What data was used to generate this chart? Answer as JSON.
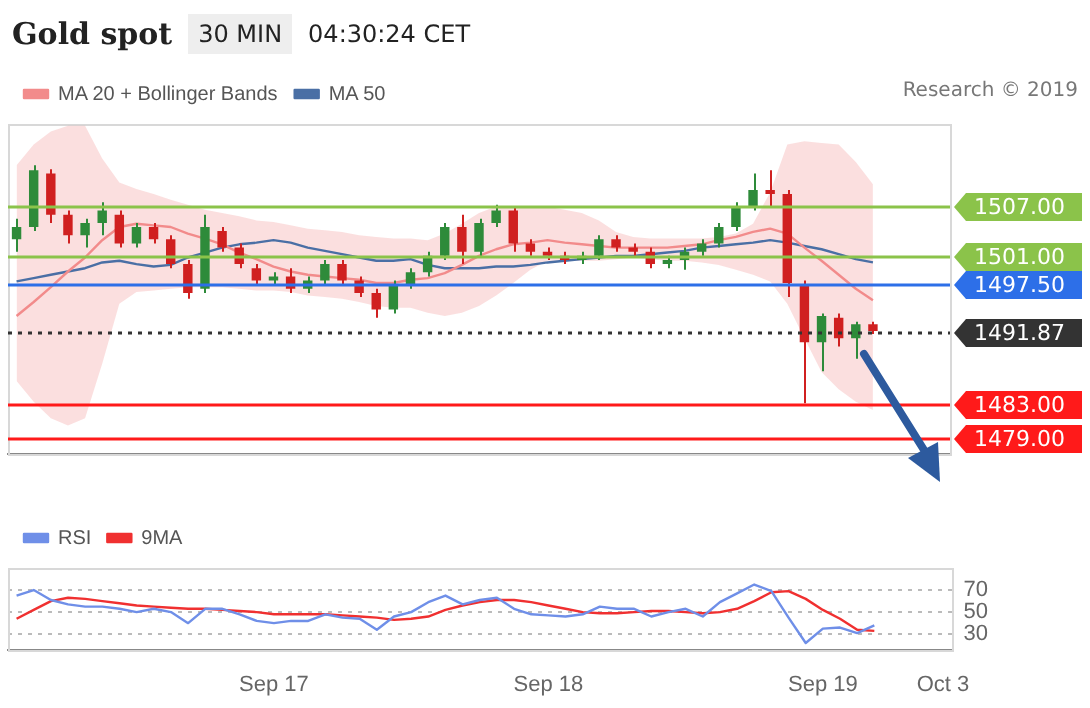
{
  "chart_data": [
    {
      "type": "candlestick",
      "title": "Gold spot",
      "annotations": [
        "30 MIN",
        "04:30:24 CET",
        "Research © 2019"
      ],
      "categories": [
        null,
        null,
        null,
        null,
        null,
        null,
        null,
        null,
        null,
        null,
        null,
        null,
        null,
        null,
        null,
        null,
        null,
        null,
        null,
        null,
        null,
        null,
        null,
        null,
        null,
        null,
        null,
        null,
        null,
        null,
        null,
        null,
        null,
        null,
        null,
        null,
        null,
        null,
        null,
        null,
        null,
        null,
        null,
        null,
        null,
        null,
        null,
        null,
        null,
        null,
        null,
        null,
        null,
        null,
        null
      ],
      "ylim": [
        1477,
        1517
      ],
      "legend": "top left",
      "ohlc": [
        [
          1503,
          1505.5,
          1501.5,
          1504.5
        ],
        [
          1504.5,
          1512,
          1504,
          1511.4
        ],
        [
          1511,
          1511.5,
          1505,
          1506
        ],
        [
          1506,
          1506.5,
          1502.5,
          1503.5
        ],
        [
          1503.5,
          1505.5,
          1502,
          1505
        ],
        [
          1505,
          1507.5,
          1503.5,
          1506.5
        ],
        [
          1506,
          1506.5,
          1502,
          1502.5
        ],
        [
          1502.5,
          1505,
          1502,
          1504.5
        ],
        [
          1504.5,
          1505,
          1502.5,
          1503
        ],
        [
          1503,
          1503.5,
          1499.5,
          1500
        ],
        [
          1500,
          1500.5,
          1495.8,
          1496.5
        ],
        [
          1497,
          1506,
          1496.5,
          1504.5
        ],
        [
          1504,
          1504.5,
          1501.5,
          1502
        ],
        [
          1502,
          1502.5,
          1499.5,
          1500
        ],
        [
          1499.5,
          1500,
          1497.5,
          1498
        ],
        [
          1498,
          1499,
          1497.5,
          1498.5
        ],
        [
          1498.5,
          1499.5,
          1496.5,
          1497
        ],
        [
          1497,
          1498.5,
          1496.5,
          1498
        ],
        [
          1498,
          1500.5,
          1497.5,
          1500
        ],
        [
          1500,
          1500.5,
          1497.5,
          1498
        ],
        [
          1498,
          1498.5,
          1496,
          1496.5
        ],
        [
          1496.5,
          1497,
          1493.5,
          1494.5
        ],
        [
          1494.5,
          1498,
          1494,
          1497.5
        ],
        [
          1497.5,
          1499.5,
          1497,
          1499
        ],
        [
          1499,
          1501.5,
          1498.5,
          1501
        ],
        [
          1501,
          1505,
          1500.5,
          1504.5
        ],
        [
          1504.5,
          1506,
          1500,
          1501.5
        ],
        [
          1501.5,
          1505.5,
          1501,
          1505
        ],
        [
          1505,
          1507.2,
          1504.5,
          1506.5
        ],
        [
          1506.5,
          1507,
          1501.5,
          1502.5
        ],
        [
          1502.5,
          1503,
          1501,
          1501.5
        ],
        [
          1501.5,
          1502,
          1500.5,
          1501
        ],
        [
          1501,
          1501.5,
          1500,
          1500.5
        ],
        [
          1500.5,
          1501.5,
          1500,
          1501
        ],
        [
          1501,
          1503.5,
          1500.5,
          1503
        ],
        [
          1503,
          1503.5,
          1501.5,
          1502
        ],
        [
          1502,
          1502.5,
          1501,
          1501.5
        ],
        [
          1501.5,
          1502,
          1499.5,
          1500
        ],
        [
          1500,
          1501,
          1499.5,
          1500.5
        ],
        [
          1500.5,
          1502,
          1499.3,
          1501.5
        ],
        [
          1501.5,
          1503,
          1501,
          1502.5
        ],
        [
          1502.5,
          1505,
          1502,
          1504.5
        ],
        [
          1504.5,
          1507.5,
          1504,
          1507
        ],
        [
          1507,
          1511,
          1506.5,
          1509
        ],
        [
          1509,
          1511.4,
          1507,
          1508.5
        ],
        [
          1508.5,
          1509,
          1496,
          1497.7
        ],
        [
          1497.5,
          1498,
          1483.1,
          1490.5
        ],
        [
          1490.5,
          1494,
          1487,
          1493.7
        ],
        [
          1493.5,
          1494,
          1490,
          1491
        ],
        [
          1491,
          1493,
          1488.5,
          1492.7
        ],
        [
          1492.7,
          1493,
          1491.5,
          1491.87
        ],
        null,
        null,
        null,
        null
      ],
      "series": [
        {
          "name": "MA 20 + Bollinger Bands",
          "type": "line",
          "color": "#f28b8b",
          "values": [
            1493.7,
            1495.4,
            1497.2,
            1499.1,
            1500.8,
            1502.9,
            1504.5,
            1504.9,
            1504.7,
            1504.5,
            1503.7,
            1503.1,
            1502.4,
            1501.4,
            1500.6,
            1499.7,
            1499.1,
            1498.7,
            1498.5,
            1498.3,
            1498.1,
            1497.7,
            1497.7,
            1498.1,
            1498.3,
            1498.9,
            1499.9,
            1501.0,
            1501.8,
            1502.4,
            1502.6,
            1502.9,
            1502.6,
            1502.4,
            1502.2,
            1502.0,
            1502.0,
            1502.0,
            1502.0,
            1502.2,
            1502.4,
            1502.9,
            1503.3,
            1503.9,
            1504.3,
            1503.7,
            1502.0,
            1500.4,
            1498.7,
            1497.0,
            1495.6,
            null,
            null,
            null,
            null
          ],
          "upper": [
            1512.0,
            1514.5,
            1516.1,
            1516.8,
            1516.8,
            1512.8,
            1509.9,
            1509.1,
            1508.5,
            1507.8,
            1507.2,
            1506.6,
            1506.2,
            1505.8,
            1505.3,
            1505.1,
            1504.7,
            1504.3,
            1504.1,
            1503.9,
            1503.5,
            1503.3,
            1503.1,
            1503.1,
            1502.9,
            1503.7,
            1504.9,
            1506.2,
            1507.0,
            1507.0,
            1507.0,
            1507.0,
            1506.6,
            1506.2,
            1505.3,
            1503.9,
            1503.3,
            1503.1,
            1503.1,
            1503.1,
            1503.1,
            1503.3,
            1503.7,
            1504.9,
            1508.7,
            1514.5,
            1514.9,
            1514.7,
            1514.5,
            1512.4,
            1509.7,
            null,
            null,
            null,
            null
          ],
          "lower": [
            1485.8,
            1483.3,
            1481.3,
            1480.4,
            1481.3,
            1487.9,
            1495.2,
            1496.6,
            1496.8,
            1497.0,
            1497.2,
            1497.2,
            1497.2,
            1497.0,
            1496.8,
            1496.8,
            1496.6,
            1496.2,
            1496.0,
            1495.8,
            1495.4,
            1494.9,
            1494.7,
            1494.7,
            1494.1,
            1493.7,
            1494.1,
            1494.9,
            1496.2,
            1497.7,
            1499.3,
            1500.4,
            1500.4,
            1500.4,
            1500.4,
            1500.6,
            1500.8,
            1500.6,
            1500.4,
            1500.4,
            1500.2,
            1499.9,
            1499.3,
            1498.7,
            1497.9,
            1495.2,
            1491.0,
            1486.9,
            1484.8,
            1483.3,
            1482.3,
            null,
            null,
            null,
            null
          ]
        },
        {
          "name": "MA 50",
          "type": "line",
          "color": "#4a6fa5",
          "values": [
            1497.9,
            1498.3,
            1498.7,
            1499.1,
            1499.5,
            1500.2,
            1500.4,
            1500.0,
            1499.7,
            1499.9,
            1500.8,
            1501.4,
            1502.0,
            1502.4,
            1502.6,
            1502.9,
            1502.6,
            1502.0,
            1501.6,
            1501.2,
            1500.8,
            1500.4,
            1500.4,
            1500.6,
            1499.9,
            1499.5,
            1499.5,
            1499.5,
            1499.7,
            1499.7,
            1499.9,
            1500.2,
            1500.4,
            1500.6,
            1500.8,
            1501.0,
            1501.0,
            1501.2,
            1501.4,
            1501.6,
            1502.0,
            1502.2,
            1502.4,
            1502.6,
            1502.9,
            1502.6,
            1502.2,
            1501.8,
            1501.2,
            1500.6,
            1500.2,
            null,
            null,
            null,
            null
          ]
        }
      ],
      "ref_lines": [
        {
          "axis": "y",
          "value": 1507,
          "label": "1507.00",
          "color": "#8bc34a"
        },
        {
          "axis": "y",
          "value": 1501,
          "label": "1501.00",
          "color": "#8bc34a"
        },
        {
          "axis": "y",
          "value": 1497.5,
          "label": "1497.50",
          "color": "#2d6fe8"
        },
        {
          "axis": "y",
          "value": 1491.87,
          "label": "1491.87",
          "color": "#333333",
          "line_style": "dotted"
        },
        {
          "axis": "y",
          "value": 1483,
          "label": "1483.00",
          "color": "#ff1a1a"
        },
        {
          "axis": "y",
          "value": 1479,
          "label": "1479.00",
          "color": "#ff1a1a"
        }
      ]
    },
    {
      "type": "line",
      "categories": [
        null,
        null,
        null,
        null,
        null,
        null,
        null,
        null,
        null,
        null,
        null,
        null,
        null,
        null,
        null,
        "Sep 17",
        null,
        null,
        null,
        null,
        null,
        null,
        null,
        null,
        null,
        null,
        null,
        null,
        null,
        null,
        null,
        "Sep 18",
        null,
        null,
        null,
        null,
        null,
        null,
        null,
        null,
        null,
        null,
        null,
        null,
        null,
        null,
        null,
        "Sep 19",
        null,
        null,
        null,
        null,
        null,
        null,
        "Oct 3"
      ],
      "ylim": [
        16,
        90
      ],
      "yticks": [
        30,
        50,
        70
      ],
      "grid": "y",
      "legend": "top left",
      "series": [
        {
          "name": "RSI",
          "color": "#6f8fe8",
          "values": [
            65,
            70,
            61,
            57,
            55,
            55,
            53,
            50,
            53,
            50,
            40,
            53,
            53,
            48,
            42,
            40,
            42,
            42,
            48,
            45,
            44,
            34,
            46,
            50,
            59,
            65,
            57,
            61,
            63,
            53,
            48,
            47,
            46,
            48,
            55,
            53,
            53,
            46,
            50,
            53,
            46,
            59,
            67,
            75,
            69,
            45,
            22,
            35,
            36,
            31,
            38,
            null,
            null,
            null,
            null
          ]
        },
        {
          "name": "9MA",
          "color": "#f03030",
          "values": [
            44,
            52,
            60,
            63,
            62,
            60,
            58,
            56,
            55,
            54,
            53,
            53,
            52,
            51,
            50,
            48,
            48,
            48,
            48,
            47,
            46,
            45,
            43,
            44,
            46,
            52,
            56,
            59,
            61,
            61,
            59,
            56,
            53,
            50,
            49,
            49,
            50,
            51,
            51,
            50,
            49,
            50,
            53,
            60,
            68,
            69,
            62,
            52,
            44,
            34,
            33,
            null,
            null,
            null,
            null
          ]
        }
      ]
    }
  ]
}
